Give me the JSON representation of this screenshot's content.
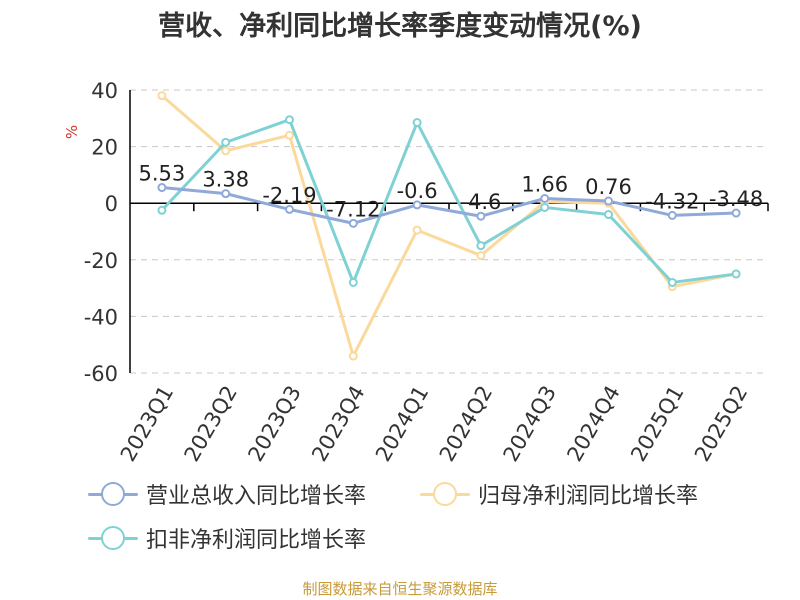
{
  "title": "营收、净利同比增长率季度变动情况(%)",
  "source": "制图数据来自恒生聚源数据库",
  "chart_data": {
    "type": "line",
    "title": "营收、净利同比增长率季度变动情况(%)",
    "xlabel": "",
    "ylabel": "%",
    "ylim": [
      -60,
      40
    ],
    "yticks": [
      40,
      20,
      0,
      -20,
      -40,
      -60
    ],
    "grid": true,
    "legend_position": "bottom",
    "categories": [
      "2023Q1",
      "2023Q2",
      "2023Q3",
      "2023Q4",
      "2024Q1",
      "2024Q2",
      "2024Q3",
      "2024Q4",
      "2025Q1",
      "2025Q2"
    ],
    "series": [
      {
        "name": "营业总收入同比增长率",
        "color": "#8fa9d9",
        "values": [
          5.53,
          3.38,
          -2.19,
          -7.12,
          -0.6,
          -4.6,
          1.66,
          0.76,
          -4.32,
          -3.48
        ],
        "labels": [
          "5.53",
          "3.38",
          "-2.19",
          "-7.12",
          "-0.6",
          "-4.6",
          "1.66",
          "0.76",
          "-4.32",
          "-3.48"
        ]
      },
      {
        "name": "归母净利润同比增长率",
        "color": "#fbd99b",
        "values": [
          38,
          18.5,
          24,
          -54,
          -9.5,
          -18.5,
          0.5,
          0,
          -29.5,
          -25
        ]
      },
      {
        "name": "扣非净利润同比增长率",
        "color": "#7fd1d4",
        "values": [
          -2.5,
          21.5,
          29.5,
          -28,
          28.5,
          -15,
          -1.5,
          -4,
          -28,
          -25
        ]
      }
    ]
  }
}
